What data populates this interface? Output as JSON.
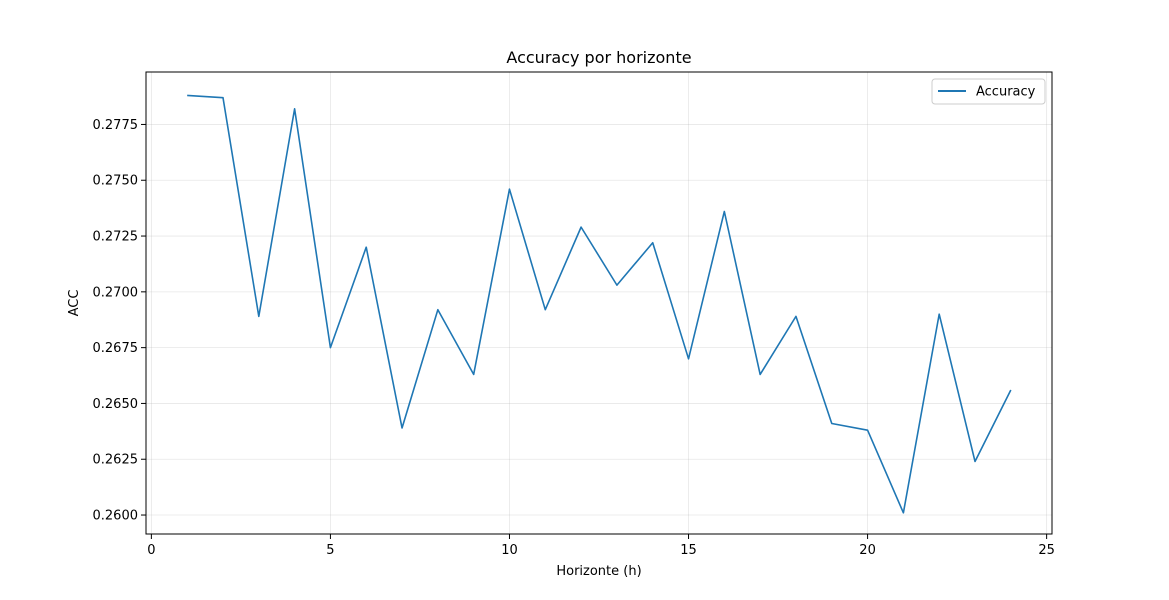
{
  "chart_data": {
    "type": "line",
    "title": "Accuracy por horizonte",
    "xlabel": "Horizonte (h)",
    "ylabel": "ACC",
    "xlim": [
      -0.15,
      25.15
    ],
    "ylim": [
      0.25915,
      0.27985
    ],
    "x_ticks": [
      0,
      5,
      10,
      15,
      20,
      25
    ],
    "y_ticks": [
      0.26,
      0.2625,
      0.265,
      0.2675,
      0.27,
      0.2725,
      0.275,
      0.2775
    ],
    "x_tick_labels": [
      "0",
      "5",
      "10",
      "15",
      "20",
      "25"
    ],
    "y_tick_labels": [
      "0.2600",
      "0.2625",
      "0.2650",
      "0.2675",
      "0.2700",
      "0.2725",
      "0.2750",
      "0.2775"
    ],
    "grid": true,
    "legend": {
      "position": "top-right",
      "entries": [
        "Accuracy"
      ]
    },
    "series": [
      {
        "name": "Accuracy",
        "color": "#1f77b4",
        "x": [
          1,
          2,
          3,
          4,
          5,
          6,
          7,
          8,
          9,
          10,
          11,
          12,
          13,
          14,
          15,
          16,
          17,
          18,
          19,
          20,
          21,
          22,
          23,
          24
        ],
        "y": [
          0.2788,
          0.2787,
          0.2689,
          0.2782,
          0.2675,
          0.272,
          0.2639,
          0.2692,
          0.2663,
          0.2746,
          0.2692,
          0.2729,
          0.2703,
          0.2722,
          0.267,
          0.2736,
          0.2663,
          0.2689,
          0.2641,
          0.2638,
          0.2601,
          0.269,
          0.2624,
          0.2656
        ]
      }
    ]
  }
}
